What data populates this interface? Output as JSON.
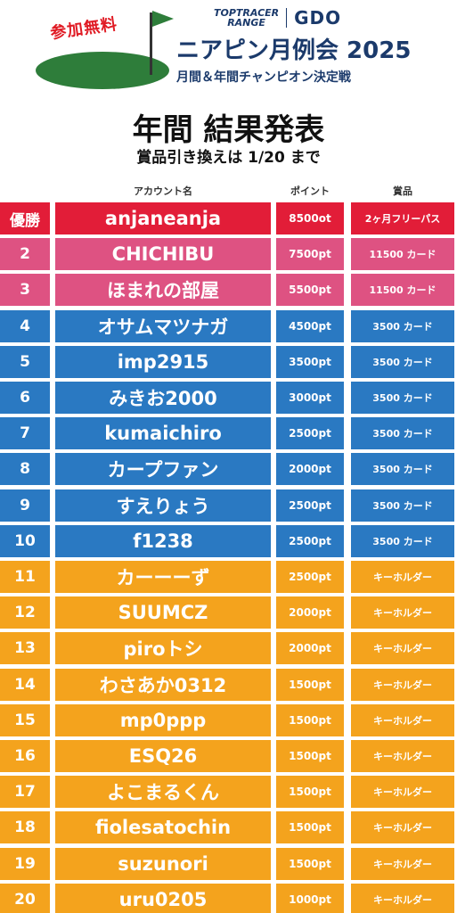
{
  "header": {
    "free_badge": "参加無料",
    "brand_top": "TOPTRACER",
    "brand_bottom": "RANGE",
    "brand_gdo": "GDO",
    "event_title": "ニアピン月例会 2025",
    "event_subtitle": "月間＆年間チャンピオン決定戦"
  },
  "results": {
    "title": "年間 結果発表",
    "subtitle": "賞品引き換えは 1/20 まで"
  },
  "columns": {
    "account": "アカウント名",
    "points": "ポイント",
    "prize": "賞品"
  },
  "colors": {
    "red": "#e21d38",
    "pink": "#de5282",
    "blue": "#2a79c2",
    "orange": "#f4a31d",
    "navy": "#1b3a6b",
    "green": "#2e7d3a"
  },
  "rows": [
    {
      "rank": "優勝",
      "name": "anjaneanja",
      "points": "8500ot",
      "prize": "2ヶ月フリーパス",
      "tier": "red"
    },
    {
      "rank": "2",
      "name": "CHICHIBU",
      "points": "7500pt",
      "prize": "11500 カード",
      "tier": "pink"
    },
    {
      "rank": "3",
      "name": "ほまれの部屋",
      "points": "5500pt",
      "prize": "11500 カード",
      "tier": "pink"
    },
    {
      "rank": "4",
      "name": "オサムマツナガ",
      "points": "4500pt",
      "prize": "3500 カード",
      "tier": "blue"
    },
    {
      "rank": "5",
      "name": "imp2915",
      "points": "3500pt",
      "prize": "3500 カード",
      "tier": "blue"
    },
    {
      "rank": "6",
      "name": "みきお2000",
      "points": "3000pt",
      "prize": "3500 カード",
      "tier": "blue"
    },
    {
      "rank": "7",
      "name": "kumaichiro",
      "points": "2500pt",
      "prize": "3500 カード",
      "tier": "blue"
    },
    {
      "rank": "8",
      "name": "カープファン",
      "points": "2000pt",
      "prize": "3500 カード",
      "tier": "blue"
    },
    {
      "rank": "9",
      "name": "すえりょう",
      "points": "2500pt",
      "prize": "3500 カード",
      "tier": "blue"
    },
    {
      "rank": "10",
      "name": "f1238",
      "points": "2500pt",
      "prize": "3500 カード",
      "tier": "blue"
    },
    {
      "rank": "11",
      "name": "カーーーず",
      "points": "2500pt",
      "prize": "キーホルダー",
      "tier": "orange"
    },
    {
      "rank": "12",
      "name": "SUUMCZ",
      "points": "2000pt",
      "prize": "キーホルダー",
      "tier": "orange"
    },
    {
      "rank": "13",
      "name": "piroトシ",
      "points": "2000pt",
      "prize": "キーホルダー",
      "tier": "orange"
    },
    {
      "rank": "14",
      "name": "わさあか0312",
      "points": "1500pt",
      "prize": "キーホルダー",
      "tier": "orange"
    },
    {
      "rank": "15",
      "name": "mp0ppp",
      "points": "1500pt",
      "prize": "キーホルダー",
      "tier": "orange"
    },
    {
      "rank": "16",
      "name": "ESQ26",
      "points": "1500pt",
      "prize": "キーホルダー",
      "tier": "orange"
    },
    {
      "rank": "17",
      "name": "よこまるくん",
      "points": "1500pt",
      "prize": "キーホルダー",
      "tier": "orange"
    },
    {
      "rank": "18",
      "name": "fiolesatochin",
      "points": "1500pt",
      "prize": "キーホルダー",
      "tier": "orange"
    },
    {
      "rank": "19",
      "name": "suzunori",
      "points": "1500pt",
      "prize": "キーホルダー",
      "tier": "orange"
    },
    {
      "rank": "20",
      "name": "uru0205",
      "points": "1000pt",
      "prize": "キーホルダー",
      "tier": "orange"
    }
  ]
}
